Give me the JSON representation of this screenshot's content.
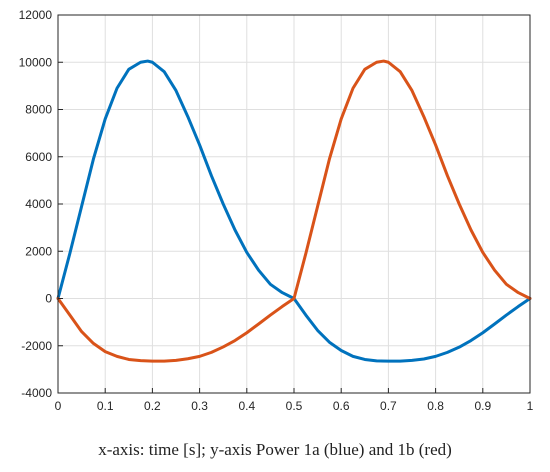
{
  "chart_data": {
    "type": "line",
    "title": "",
    "xlabel": "",
    "ylabel": "",
    "xlim": [
      0,
      1
    ],
    "ylim": [
      -4000,
      12000
    ],
    "xticks": [
      0,
      0.1,
      0.2,
      0.3,
      0.4,
      0.5,
      0.6,
      0.7,
      0.8,
      0.9,
      1
    ],
    "xtick_labels": [
      "0",
      "0.1",
      "0.2",
      "0.3",
      "0.4",
      "0.5",
      "0.6",
      "0.7",
      "0.8",
      "0.9",
      "1"
    ],
    "yticks": [
      -4000,
      -2000,
      0,
      2000,
      4000,
      6000,
      8000,
      10000,
      12000
    ],
    "ytick_labels": [
      "-4000",
      "-2000",
      "0",
      "2000",
      "4000",
      "6000",
      "8000",
      "10000",
      "12000"
    ],
    "grid": true,
    "series": [
      {
        "color": "#0072BD",
        "x": [
          0,
          0.025,
          0.05,
          0.075,
          0.1,
          0.125,
          0.15,
          0.175,
          0.19,
          0.2,
          0.225,
          0.25,
          0.275,
          0.3,
          0.325,
          0.35,
          0.375,
          0.4,
          0.425,
          0.45,
          0.475,
          0.5,
          0.525,
          0.55,
          0.575,
          0.6,
          0.625,
          0.65,
          0.675,
          0.7,
          0.725,
          0.75,
          0.775,
          0.8,
          0.825,
          0.85,
          0.875,
          0.9,
          0.925,
          0.95,
          0.975,
          1
        ],
        "y": [
          0,
          1900,
          3900,
          5900,
          7600,
          8900,
          9700,
          10000,
          10050,
          10000,
          9600,
          8800,
          7700,
          6500,
          5200,
          4000,
          2900,
          1950,
          1200,
          600,
          250,
          0,
          -700,
          -1350,
          -1850,
          -2200,
          -2450,
          -2580,
          -2640,
          -2650,
          -2650,
          -2620,
          -2560,
          -2450,
          -2280,
          -2060,
          -1780,
          -1450,
          -1080,
          -700,
          -340,
          0
        ]
      },
      {
        "color": "#D95319",
        "x": [
          0,
          0.025,
          0.05,
          0.075,
          0.1,
          0.125,
          0.15,
          0.175,
          0.2,
          0.225,
          0.25,
          0.275,
          0.3,
          0.325,
          0.35,
          0.375,
          0.4,
          0.425,
          0.45,
          0.475,
          0.5,
          0.525,
          0.55,
          0.575,
          0.6,
          0.625,
          0.65,
          0.675,
          0.69,
          0.7,
          0.725,
          0.75,
          0.775,
          0.8,
          0.825,
          0.85,
          0.875,
          0.9,
          0.925,
          0.95,
          0.975,
          1
        ],
        "y": [
          0,
          -700,
          -1400,
          -1900,
          -2250,
          -2450,
          -2580,
          -2630,
          -2650,
          -2650,
          -2620,
          -2550,
          -2450,
          -2280,
          -2050,
          -1780,
          -1450,
          -1080,
          -700,
          -340,
          0,
          1900,
          3900,
          5900,
          7600,
          8900,
          9700,
          10000,
          10050,
          10000,
          9600,
          8800,
          7700,
          6500,
          5200,
          4000,
          2900,
          1950,
          1200,
          600,
          250,
          0
        ]
      }
    ]
  },
  "caption": "x-axis: time [s]; y-axis Power 1a (blue) and 1b (red)"
}
